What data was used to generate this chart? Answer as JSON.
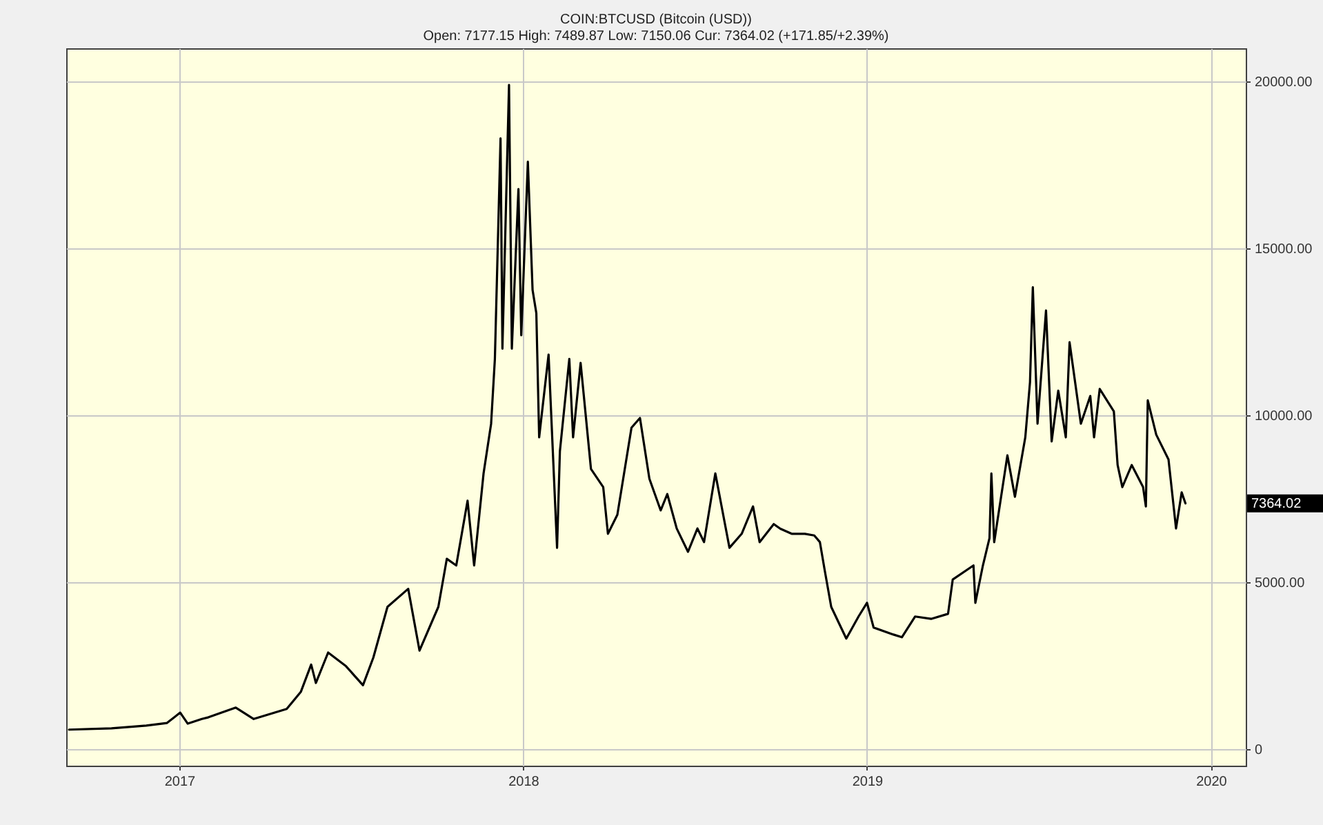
{
  "chart_data": {
    "type": "line",
    "title": "COIN:BTCUSD (Bitcoin (USD))",
    "subtitle": "Open: 7177.15 High: 7489.87 Low: 7150.06 Cur: 7364.02 (+171.85/+2.39%)",
    "x": [
      "2016-09-06",
      "2016-10-21",
      "2016-11-27",
      "2016-12-19",
      "2017-01-02",
      "2017-01-10",
      "2017-01-25",
      "2017-02-01",
      "2017-03-02",
      "2017-03-21",
      "2017-04-25",
      "2017-05-10",
      "2017-05-21",
      "2017-05-26",
      "2017-06-08",
      "2017-06-27",
      "2017-07-15",
      "2017-07-26",
      "2017-08-10",
      "2017-09-01",
      "2017-09-13",
      "2017-10-03",
      "2017-10-12",
      "2017-10-22",
      "2017-11-03",
      "2017-11-10",
      "2017-11-20",
      "2017-11-28",
      "2017-12-02",
      "2017-12-08",
      "2017-12-10",
      "2017-12-17",
      "2017-12-20",
      "2017-12-27",
      "2017-12-30",
      "2018-01-06",
      "2018-01-11",
      "2018-01-15",
      "2018-01-18",
      "2018-01-28",
      "2018-02-06",
      "2018-02-09",
      "2018-02-19",
      "2018-02-23",
      "2018-03-03",
      "2018-03-14",
      "2018-03-27",
      "2018-04-01",
      "2018-04-11",
      "2018-04-26",
      "2018-05-05",
      "2018-05-15",
      "2018-05-27",
      "2018-06-03",
      "2018-06-13",
      "2018-06-25",
      "2018-07-05",
      "2018-07-12",
      "2018-07-24",
      "2018-08-08",
      "2018-08-21",
      "2018-09-02",
      "2018-09-09",
      "2018-09-24",
      "2018-10-01",
      "2018-10-13",
      "2018-10-27",
      "2018-11-06",
      "2018-11-12",
      "2018-11-17",
      "2018-11-24",
      "2018-12-10",
      "2018-12-23",
      "2019-01-01",
      "2019-01-08",
      "2019-01-29",
      "2019-02-07",
      "2019-02-21",
      "2019-03-10",
      "2019-03-28",
      "2019-04-02",
      "2019-04-24",
      "2019-04-26",
      "2019-05-04",
      "2019-05-11",
      "2019-05-13",
      "2019-05-16",
      "2019-05-30",
      "2019-06-07",
      "2019-06-18",
      "2019-06-23",
      "2019-06-26",
      "2019-07-01",
      "2019-07-10",
      "2019-07-16",
      "2019-07-23",
      "2019-07-31",
      "2019-08-04",
      "2019-08-16",
      "2019-08-26",
      "2019-08-30",
      "2019-09-05",
      "2019-09-20",
      "2019-09-24",
      "2019-09-29",
      "2019-10-09",
      "2019-10-21",
      "2019-10-24",
      "2019-10-26",
      "2019-11-04",
      "2019-11-17",
      "2019-11-25",
      "2019-12-01",
      "2019-12-05"
    ],
    "series": [
      {
        "color": "#000000",
        "values": [
          580,
          620,
          700,
          780,
          1090,
          760,
          900,
          950,
          1240,
          900,
          1200,
          1710,
          2530,
          1980,
          2890,
          2480,
          1910,
          2740,
          4260,
          4800,
          2950,
          4260,
          5700,
          5500,
          7440,
          5500,
          8260,
          9750,
          11690,
          18300,
          12000,
          19900,
          12000,
          16780,
          12400,
          17600,
          13760,
          13060,
          9340,
          11820,
          6030,
          8920,
          11690,
          9340,
          11570,
          8390,
          7850,
          6450,
          7020,
          9630,
          9920,
          8100,
          7150,
          7640,
          6610,
          5910,
          6610,
          6200,
          8260,
          6030,
          6450,
          7270,
          6200,
          6740,
          6600,
          6450,
          6450,
          6400,
          6200,
          5370,
          4260,
          3310,
          3970,
          4380,
          3640,
          3430,
          3350,
          3970,
          3900,
          4050,
          5080,
          5500,
          4380,
          5500,
          6320,
          8260,
          6200,
          8800,
          7560,
          9340,
          10990,
          13840,
          9750,
          13140,
          9220,
          10740,
          9340,
          12190,
          9750,
          10580,
          9340,
          10790,
          10120,
          8510,
          7850,
          8510,
          7850,
          7270,
          10450,
          9420,
          8680,
          6610,
          7690,
          7360
        ]
      }
    ],
    "xlim": [
      "2016-09-03",
      "2020-02-07"
    ],
    "xticks": [
      "2017",
      "2018",
      "2019",
      "2020"
    ],
    "ylim": [
      -500,
      21000
    ],
    "yticks": [
      0,
      {
        "value": 5000,
        "label": "5000.00"
      },
      {
        "value": 10000,
        "label": "10000.00"
      },
      {
        "value": 15000,
        "label": "15000.00"
      },
      {
        "value": 20000,
        "label": "20000.00"
      }
    ],
    "grid": true,
    "line_style": "solid",
    "annotations": [
      "7364.02"
    ]
  }
}
